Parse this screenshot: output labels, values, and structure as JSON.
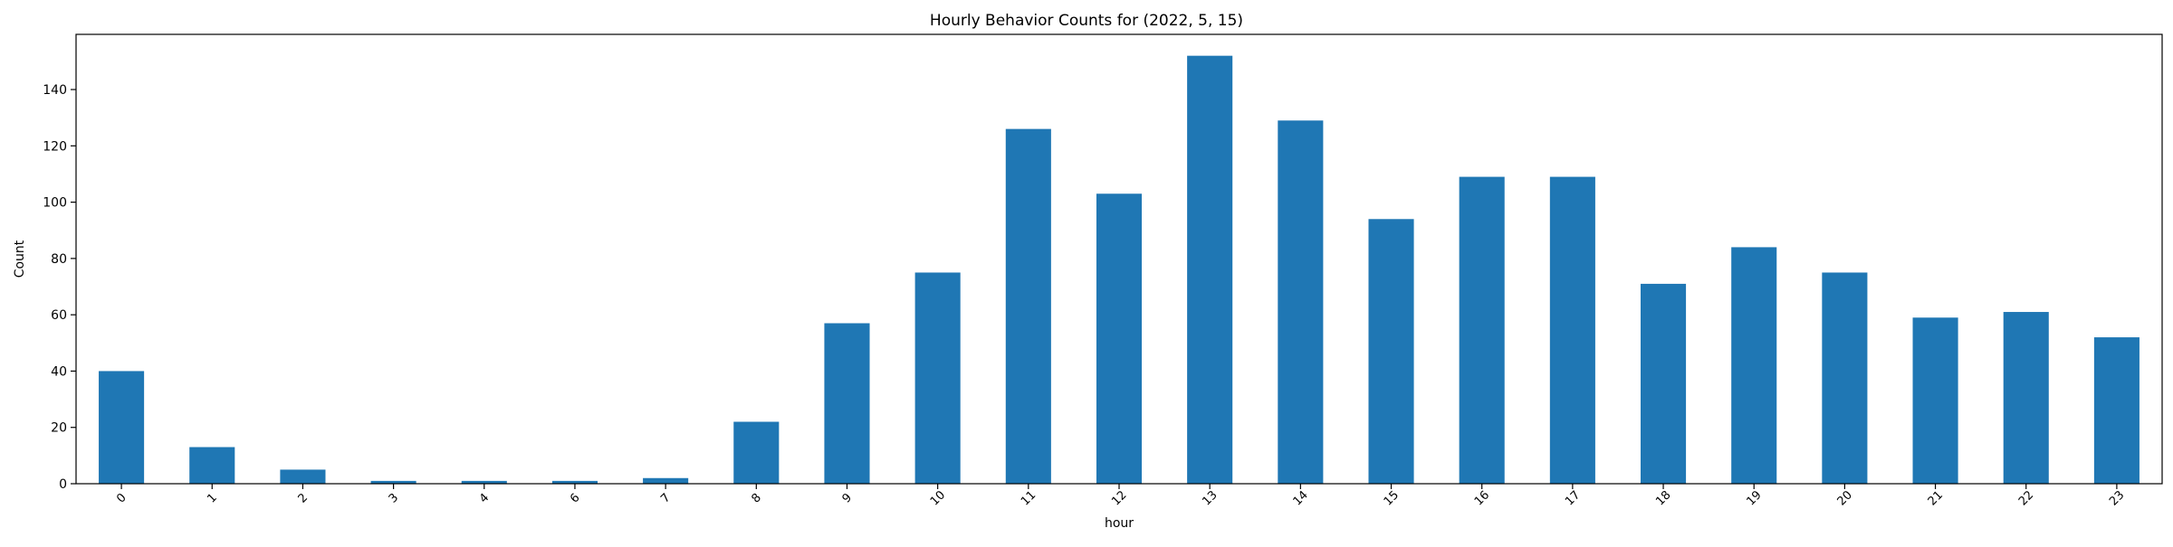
{
  "chart_data": {
    "type": "bar",
    "title": "Hourly Behavior Counts for (2022, 5, 15)",
    "xlabel": "hour",
    "ylabel": "Count",
    "categories": [
      "0",
      "1",
      "2",
      "3",
      "4",
      "6",
      "7",
      "8",
      "9",
      "10",
      "11",
      "12",
      "13",
      "14",
      "15",
      "16",
      "17",
      "18",
      "19",
      "20",
      "21",
      "22",
      "23"
    ],
    "values": [
      40,
      13,
      5,
      1,
      1,
      1,
      2,
      22,
      57,
      75,
      126,
      103,
      152,
      129,
      94,
      109,
      109,
      71,
      84,
      75,
      59,
      61,
      52
    ],
    "ylim": [
      0,
      159.6
    ],
    "yticks": [
      0,
      20,
      40,
      60,
      80,
      100,
      120,
      140
    ],
    "grid": false,
    "legend": "none",
    "bar_color": "#1f77b4",
    "xtick_rotation": "45"
  }
}
